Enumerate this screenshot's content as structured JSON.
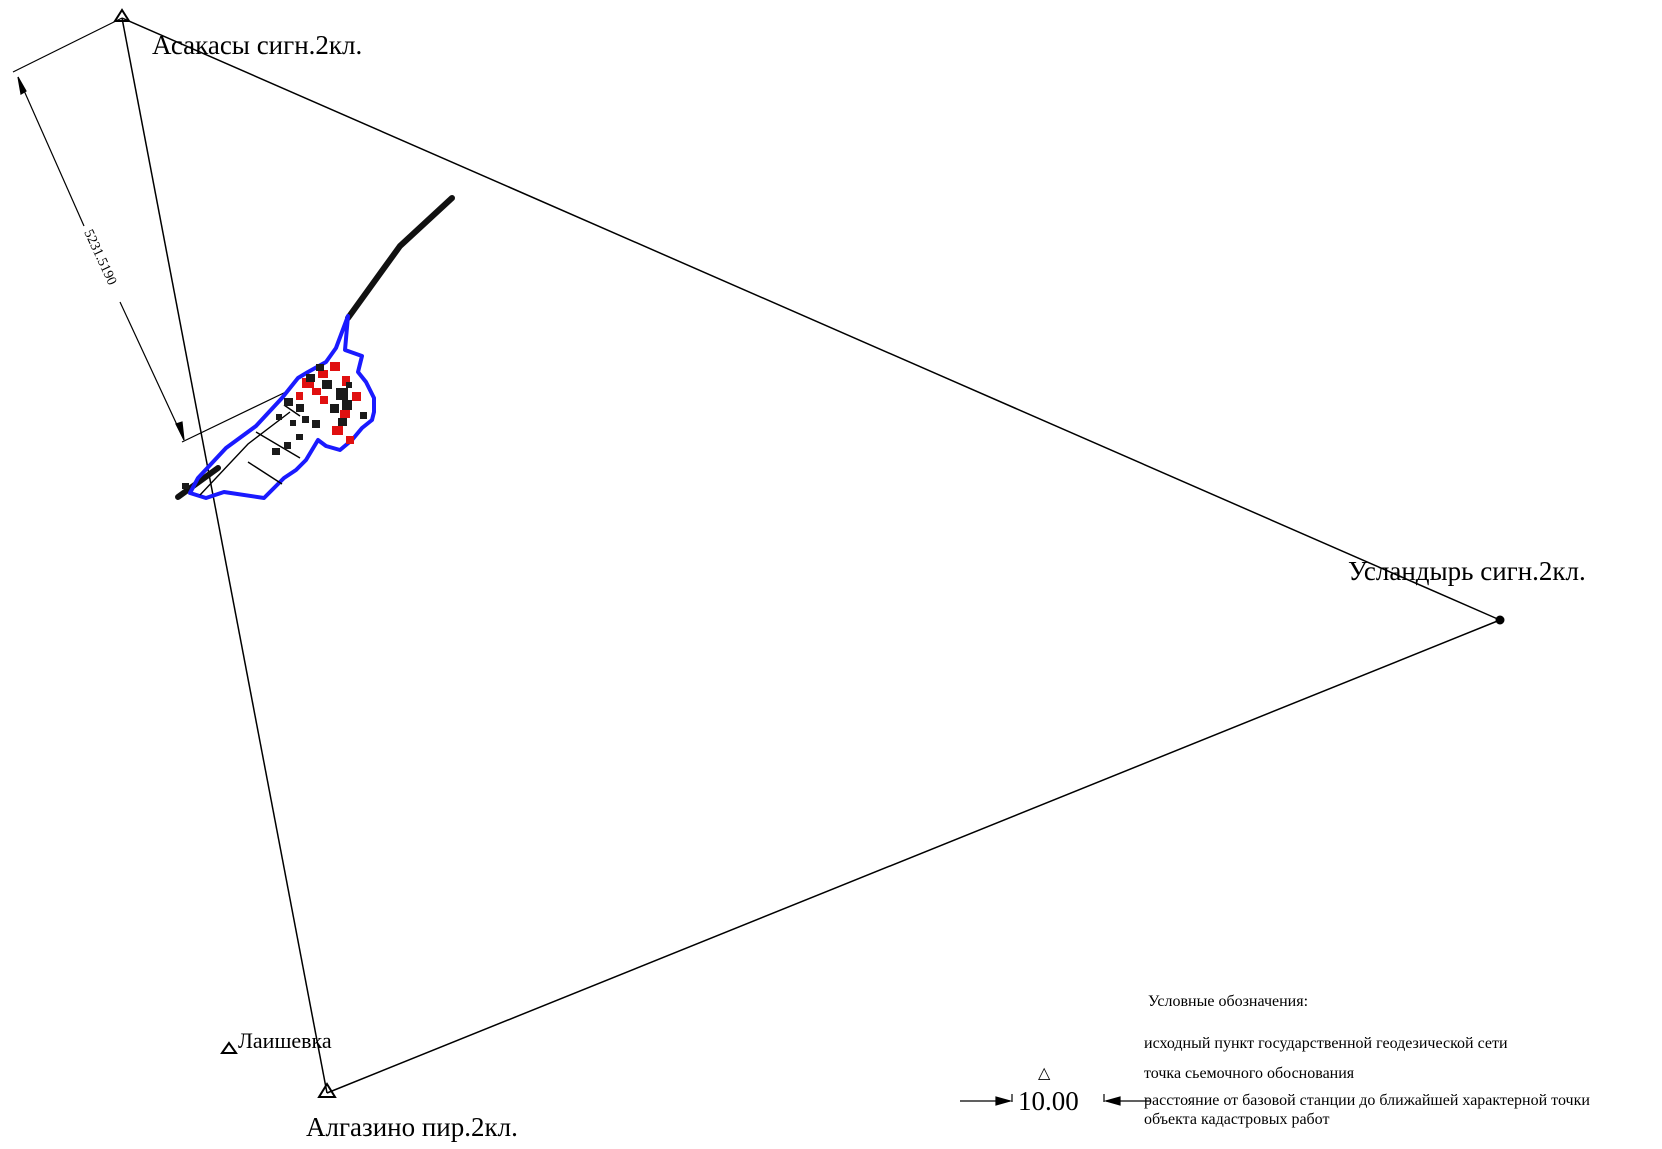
{
  "points": {
    "asakasy": "Асакасы сигн.2кл.",
    "uslandyr": "Усландырь сигн.2кл.",
    "algazino": "Алгазино пир.2кл."
  },
  "dimension": {
    "value": "5231.5190"
  },
  "legend": {
    "title": "Условные обозначения:",
    "items": [
      {
        "symbol": "Лаишевка",
        "text": "исходный пункт  государственной геодезической сети"
      },
      {
        "symbol": "△",
        "text": "точка сьемочного обоснования"
      },
      {
        "symbol": "10.00",
        "text": "расстояние от базовой станции до ближайшей характерной точки"
      },
      {
        "symbol": "",
        "text": "объекта кадастровых работ"
      }
    ]
  },
  "colors": {
    "boundary": "#1a1aff",
    "buildings_existing": "#e01010",
    "buildings": "#1a1a1a",
    "lines": "#000000"
  }
}
